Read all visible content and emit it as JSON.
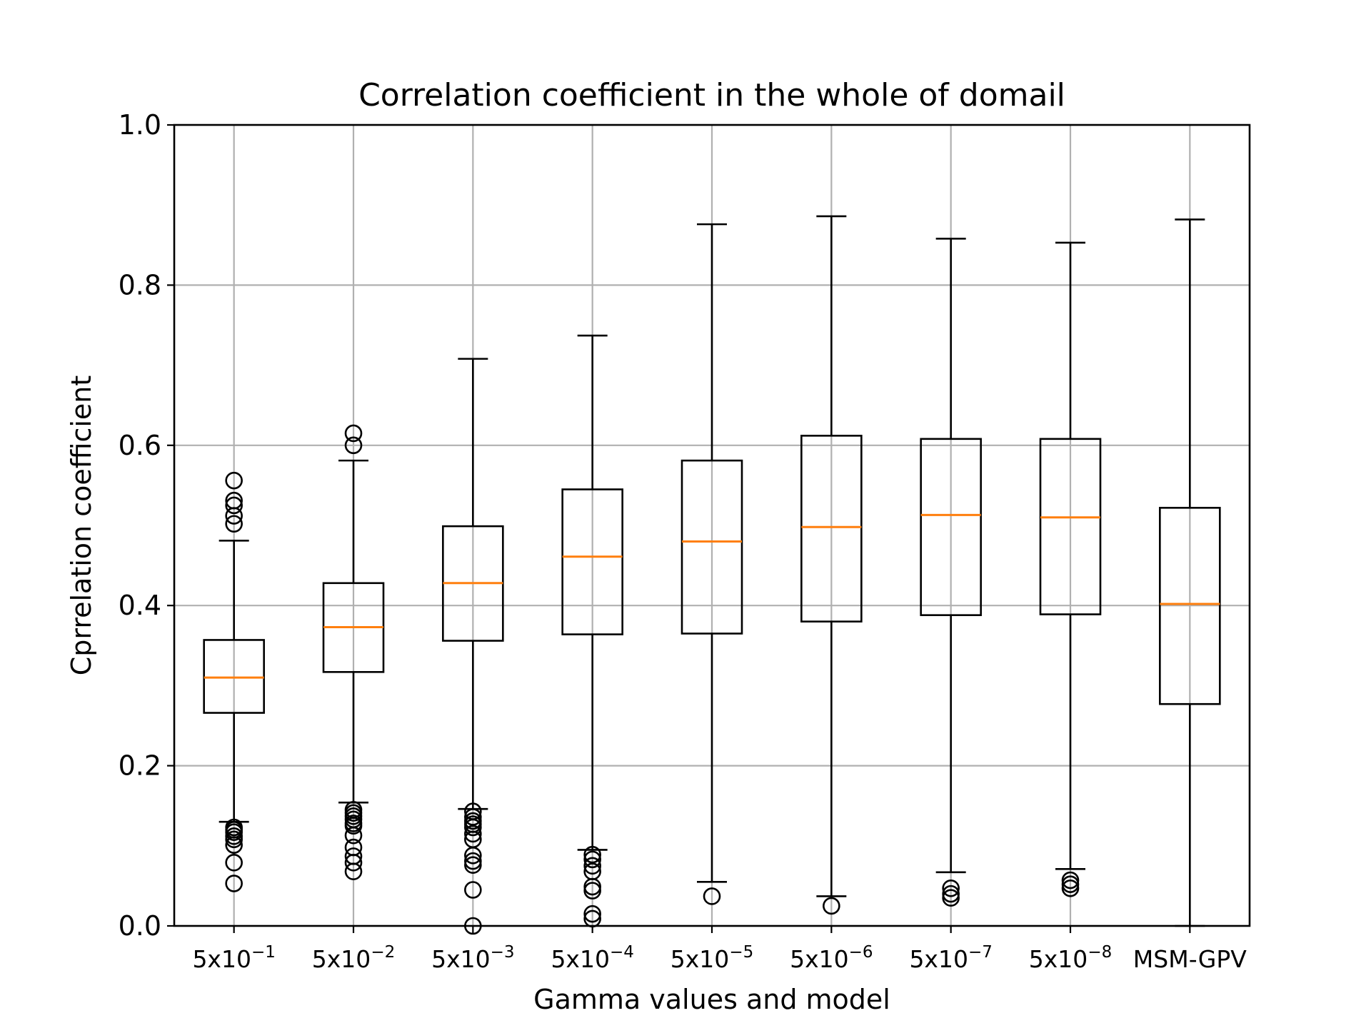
{
  "chart_data": {
    "type": "box",
    "title": "Correlation coefficient in the whole of domail",
    "xlabel": "Gamma values and model",
    "ylabel": "Cprrelation coefficient",
    "ylim": [
      0.0,
      1.0
    ],
    "yticks": [
      "0.0",
      "0.2",
      "0.4",
      "0.6",
      "0.8",
      "1.0"
    ],
    "grid": true,
    "median_color": "#ff7f0e",
    "categories": [
      {
        "base": "5x10",
        "exp": "−1"
      },
      {
        "base": "5x10",
        "exp": "−2"
      },
      {
        "base": "5x10",
        "exp": "−3"
      },
      {
        "base": "5x10",
        "exp": "−4"
      },
      {
        "base": "5x10",
        "exp": "−5"
      },
      {
        "base": "5x10",
        "exp": "−6"
      },
      {
        "base": "5x10",
        "exp": "−7"
      },
      {
        "base": "5x10",
        "exp": "−8"
      },
      {
        "base": "MSM-GPV",
        "exp": ""
      }
    ],
    "boxes": [
      {
        "whislo": 0.13,
        "q1": 0.266,
        "median": 0.31,
        "q3": 0.357,
        "whishi": 0.481,
        "fliers": [
          0.556,
          0.531,
          0.525,
          0.512,
          0.502,
          0.123,
          0.12,
          0.117,
          0.112,
          0.108,
          0.101,
          0.079,
          0.053
        ]
      },
      {
        "whislo": 0.154,
        "q1": 0.317,
        "median": 0.373,
        "q3": 0.428,
        "whishi": 0.581,
        "fliers": [
          0.615,
          0.6,
          0.145,
          0.141,
          0.137,
          0.133,
          0.128,
          0.125,
          0.113,
          0.098,
          0.087,
          0.079,
          0.068
        ]
      },
      {
        "whislo": 0.146,
        "q1": 0.356,
        "median": 0.428,
        "q3": 0.499,
        "whishi": 0.708,
        "fliers": [
          0.143,
          0.136,
          0.131,
          0.127,
          0.123,
          0.115,
          0.108,
          0.088,
          0.081,
          0.076,
          0.045,
          0.0
        ]
      },
      {
        "whislo": 0.095,
        "q1": 0.364,
        "median": 0.461,
        "q3": 0.545,
        "whishi": 0.737,
        "fliers": [
          0.089,
          0.083,
          0.075,
          0.068,
          0.049,
          0.044,
          0.015,
          0.009
        ]
      },
      {
        "whislo": 0.055,
        "q1": 0.365,
        "median": 0.48,
        "q3": 0.581,
        "whishi": 0.876,
        "fliers": [
          0.037
        ]
      },
      {
        "whislo": 0.037,
        "q1": 0.38,
        "median": 0.498,
        "q3": 0.612,
        "whishi": 0.886,
        "fliers": [
          0.025
        ]
      },
      {
        "whislo": 0.067,
        "q1": 0.388,
        "median": 0.513,
        "q3": 0.608,
        "whishi": 0.858,
        "fliers": [
          0.047,
          0.04,
          0.035
        ]
      },
      {
        "whislo": 0.071,
        "q1": 0.389,
        "median": 0.51,
        "q3": 0.608,
        "whishi": 0.853,
        "fliers": [
          0.057,
          0.052,
          0.047
        ]
      },
      {
        "whislo": 0.0,
        "q1": 0.277,
        "median": 0.402,
        "q3": 0.522,
        "whishi": 0.882,
        "fliers": []
      }
    ]
  }
}
